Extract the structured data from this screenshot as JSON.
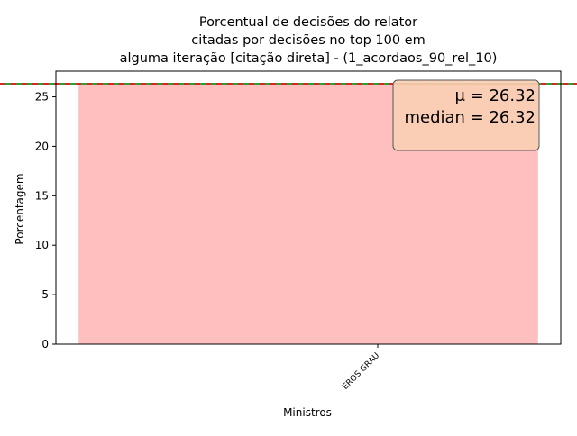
{
  "chart_data": {
    "type": "bar",
    "title": "Porcentual de decisões do relator\ncitadas por decisões no top 100 em\nalguma iteração [citação direta] - (1_acordaos_90_rel_10)",
    "xlabel": "Ministros",
    "ylabel": "Porcentagem",
    "categories": [
      "EROS GRAU"
    ],
    "values": [
      26.32
    ],
    "ylim": [
      0,
      27.6
    ],
    "yticks": [
      0,
      5,
      10,
      15,
      20,
      25
    ],
    "grid": false,
    "bar_color": "#ffbfbf",
    "mean": 26.32,
    "median": 26.32,
    "mean_line_color": "#d62728",
    "median_line_color": "#2ca02c",
    "annotation": {
      "mean_label": "μ = 26.32",
      "median_label": "median = 26.32",
      "box_color": "#f8cfb4",
      "placement": "top-right"
    }
  }
}
